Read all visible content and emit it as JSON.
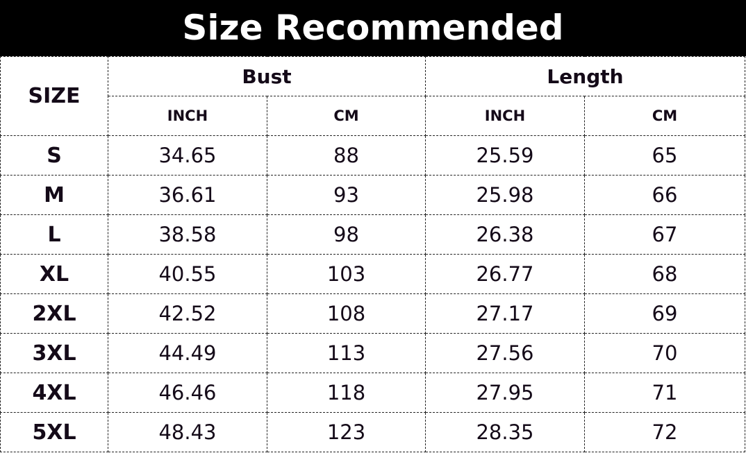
{
  "title": "Size Recommended",
  "headers": {
    "size": "SIZE",
    "bust": "Bust",
    "length": "Length",
    "inch": "INCH",
    "cm": "CM"
  },
  "rows": [
    {
      "size": "S",
      "bust_inch": "34.65",
      "bust_cm": "88",
      "length_inch": "25.59",
      "length_cm": "65"
    },
    {
      "size": "M",
      "bust_inch": "36.61",
      "bust_cm": "93",
      "length_inch": "25.98",
      "length_cm": "66"
    },
    {
      "size": "L",
      "bust_inch": "38.58",
      "bust_cm": "98",
      "length_inch": "26.38",
      "length_cm": "67"
    },
    {
      "size": "XL",
      "bust_inch": "40.55",
      "bust_cm": "103",
      "length_inch": "26.77",
      "length_cm": "68"
    },
    {
      "size": "2XL",
      "bust_inch": "42.52",
      "bust_cm": "108",
      "length_inch": "27.17",
      "length_cm": "69"
    },
    {
      "size": "3XL",
      "bust_inch": "44.49",
      "bust_cm": "113",
      "length_inch": "27.56",
      "length_cm": "70"
    },
    {
      "size": "4XL",
      "bust_inch": "46.46",
      "bust_cm": "118",
      "length_inch": "27.95",
      "length_cm": "71"
    },
    {
      "size": "5XL",
      "bust_inch": "48.43",
      "bust_cm": "123",
      "length_inch": "28.35",
      "length_cm": "72"
    }
  ]
}
